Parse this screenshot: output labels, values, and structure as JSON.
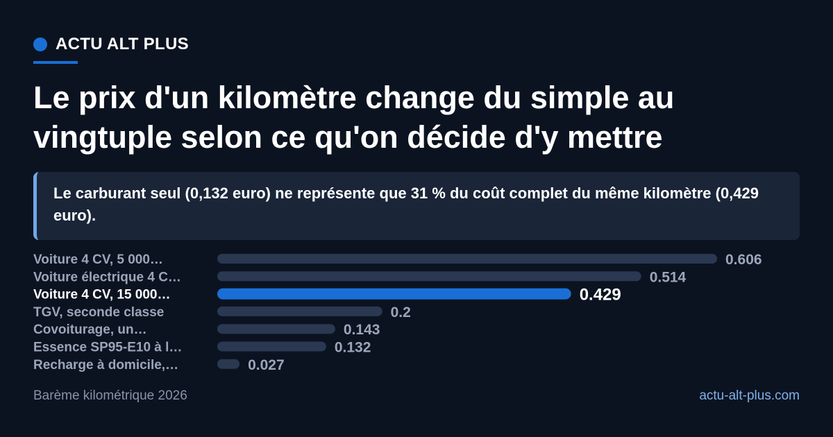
{
  "brand": {
    "name": "ACTU ALT PLUS",
    "accent": "#1a6fd6"
  },
  "headline": "Le prix d'un kilomètre change du simple au vingtuple selon ce qu'on décide d'y mettre",
  "callout": "Le carburant seul (0,132 euro) ne représente que 31 % du coût complet du même kilomètre (0,429 euro).",
  "chart_data": {
    "type": "bar",
    "orientation": "horizontal",
    "title": "",
    "xlabel": "",
    "ylabel": "",
    "xlim": [
      0,
      0.606
    ],
    "grid": false,
    "legend": "none",
    "categories": [
      "Voiture 4 CV, 5 000…",
      "Voiture électrique 4 C…",
      "Voiture 4 CV, 15 000…",
      "TGV, seconde classe",
      "Covoiturage, un…",
      "Essence SP95-E10 à l…",
      "Recharge à domicile,…"
    ],
    "values": [
      0.606,
      0.514,
      0.429,
      0.2,
      0.143,
      0.132,
      0.027
    ],
    "value_labels": [
      "0.606",
      "0.514",
      "0.429",
      "0.2",
      "0.143",
      "0.132",
      "0.027"
    ],
    "highlight_index": 2,
    "colors": {
      "bar": "#2b3852",
      "highlight": "#1a6fd6",
      "label": "#9aa6ba",
      "highlight_label": "#ffffff"
    }
  },
  "footer": {
    "source": "Barème kilométrique 2026",
    "site": "actu-alt-plus.com"
  }
}
